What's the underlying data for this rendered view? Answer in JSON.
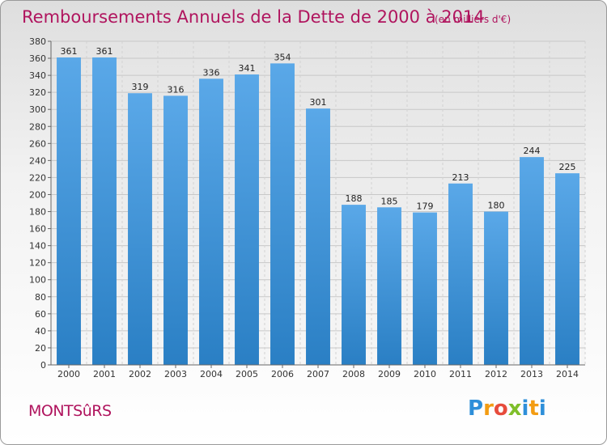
{
  "header": {
    "title": "Remboursements Annuels de la Dette de 2000 à 2014",
    "subtitle": "(en milliers d'€)"
  },
  "footer": {
    "commune": "MONTSûRS",
    "logo_letters": [
      "P",
      "r",
      "o",
      "x",
      "i",
      "t",
      "i"
    ],
    "logo_colors": [
      "#2e8fd9",
      "#f39c12",
      "#e74c3c",
      "#7fbf2a",
      "#2e8fd9",
      "#f39c12",
      "#2e8fd9"
    ]
  },
  "colors": {
    "bar_top": "#5aa8e8",
    "bar_bottom": "#2a7fc4",
    "accent": "#b0145e"
  },
  "chart_data": {
    "type": "bar",
    "title": "Remboursements Annuels de la Dette de 2000 à 2014",
    "categories": [
      "2000",
      "2001",
      "2002",
      "2003",
      "2004",
      "2005",
      "2006",
      "2007",
      "2008",
      "2009",
      "2010",
      "2011",
      "2012",
      "2013",
      "2014"
    ],
    "values": [
      361,
      361,
      319,
      316,
      336,
      341,
      354,
      301,
      188,
      185,
      179,
      213,
      180,
      244,
      225
    ],
    "ylim": [
      0,
      380
    ],
    "yticks": [
      0,
      20,
      40,
      60,
      80,
      100,
      120,
      140,
      160,
      180,
      200,
      220,
      240,
      260,
      280,
      300,
      320,
      340,
      360,
      380
    ],
    "grid": true,
    "legend": "none"
  }
}
